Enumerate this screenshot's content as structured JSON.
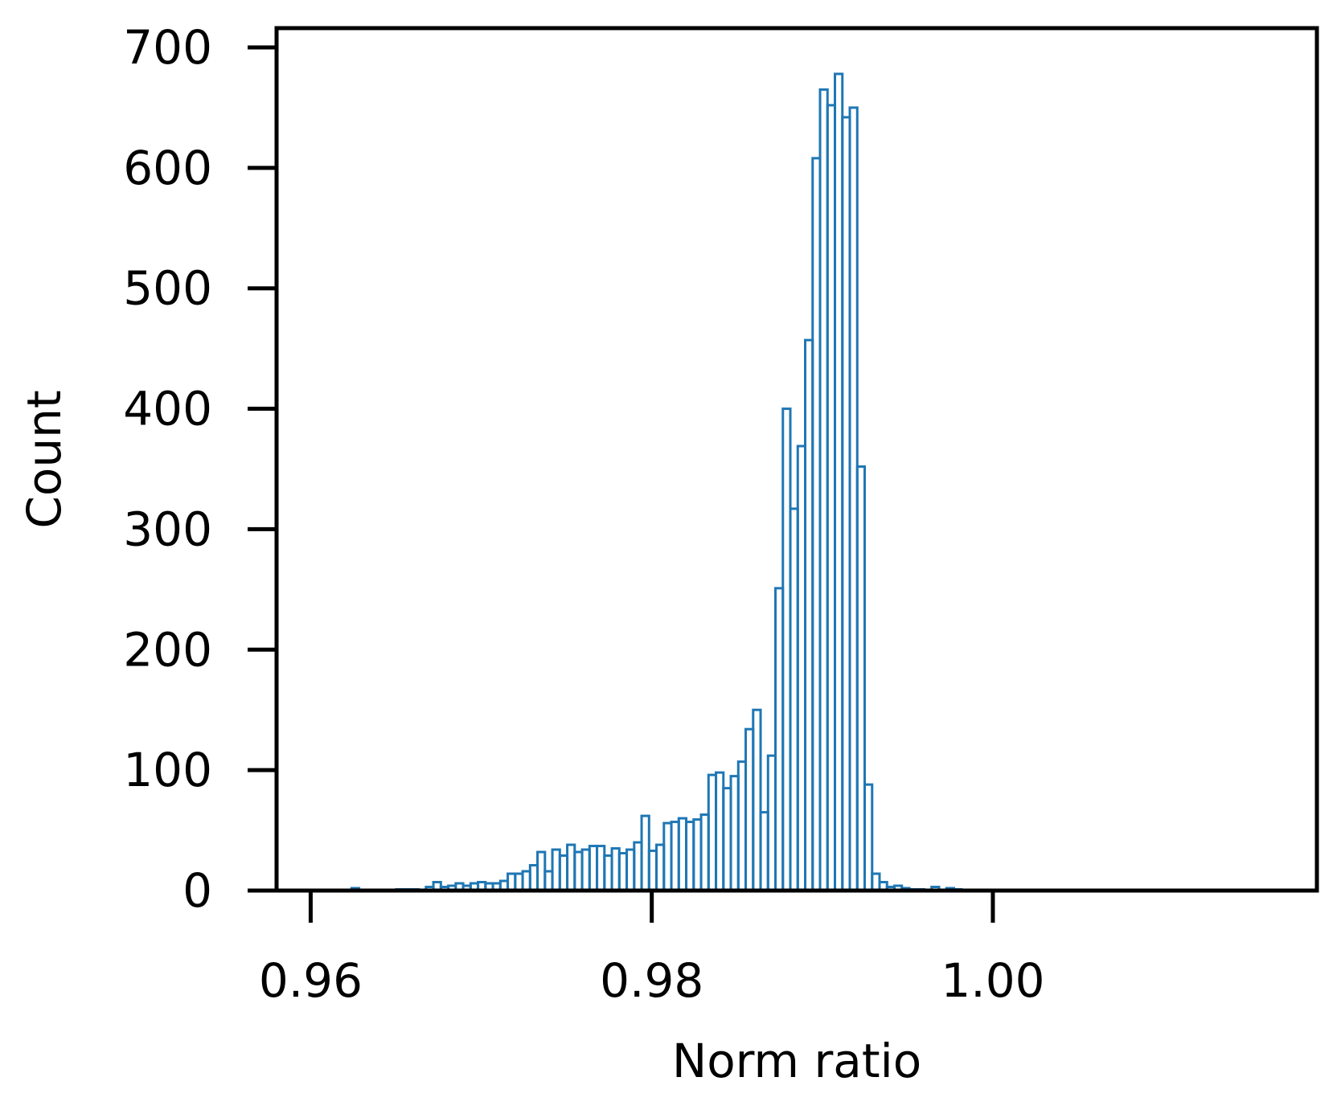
{
  "chart_data": {
    "type": "histogram",
    "title": "",
    "xlabel": "Norm ratio",
    "ylabel": "Count",
    "xlim": [
      0.958,
      1.019
    ],
    "ylim": [
      0,
      716
    ],
    "xticks": [
      0.96,
      0.98,
      1.0
    ],
    "xtick_labels": [
      "0.96",
      "0.98",
      "1.00"
    ],
    "yticks": [
      0,
      100,
      200,
      300,
      400,
      500,
      600,
      700
    ],
    "ytick_labels": [
      "0",
      "100",
      "200",
      "300",
      "400",
      "500",
      "600",
      "700"
    ],
    "bin_start": 0.9624,
    "bin_width": 0.000436,
    "counts": [
      2,
      0,
      0,
      0,
      0,
      0,
      1,
      1,
      1,
      0,
      3,
      7,
      3,
      4,
      6,
      4,
      6,
      7,
      6,
      6,
      8,
      14,
      14,
      16,
      21,
      32,
      16,
      34,
      29,
      38,
      32,
      34,
      37,
      37,
      29,
      35,
      31,
      34,
      40,
      62,
      33,
      38,
      56,
      57,
      60,
      57,
      59,
      63,
      96,
      98,
      85,
      95,
      107,
      134,
      150,
      65,
      112,
      251,
      400,
      317,
      369,
      457,
      608,
      665,
      652,
      678,
      642,
      650,
      352,
      88,
      14,
      7,
      3,
      4,
      2,
      1,
      1,
      0,
      3,
      0,
      2,
      1
    ],
    "grid": false,
    "legend": "none",
    "colors": {
      "bars": "#1f77b4",
      "axes": "#000000"
    }
  }
}
